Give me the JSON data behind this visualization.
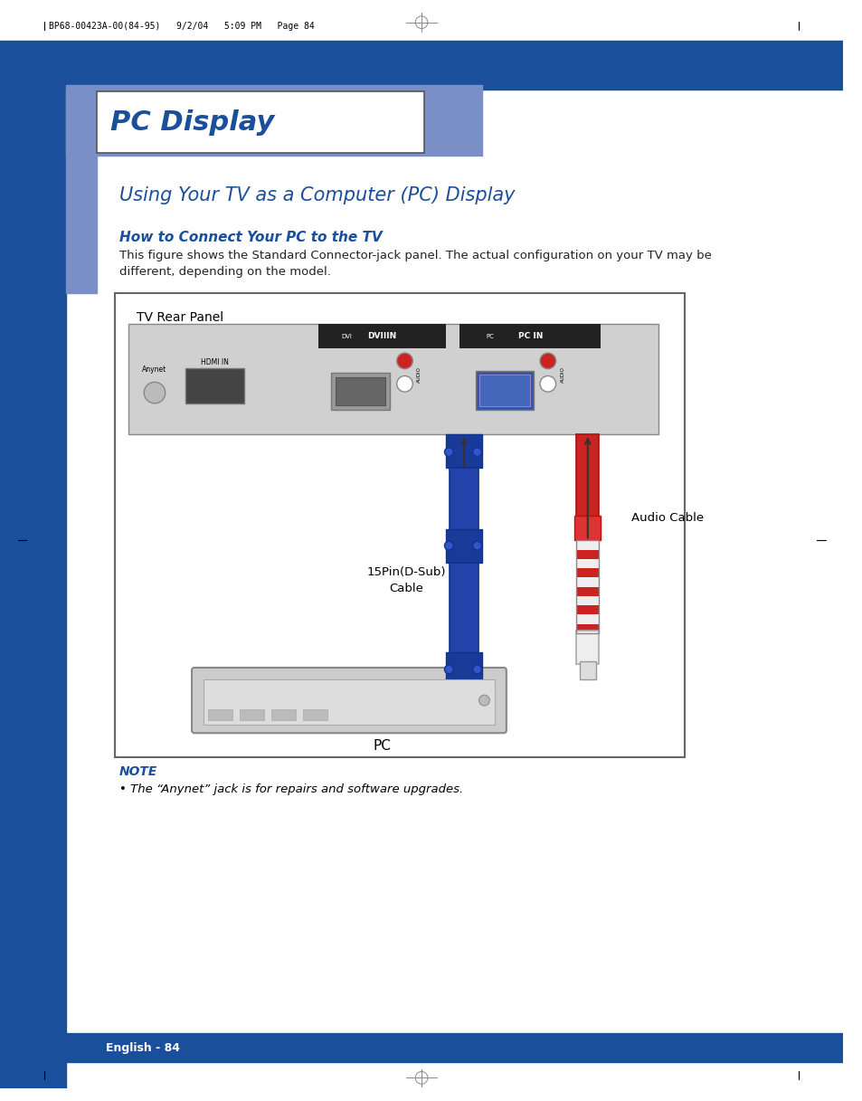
{
  "page_bg": "#ffffff",
  "dark_blue": "#1a4f9c",
  "light_blue_sidebar": "#7b8fc7",
  "title_text": "PC Display",
  "title_text_color": "#1a4f9c",
  "subtitle": "Using Your TV as a Computer (PC) Display",
  "subtitle_color": "#1a4f9c",
  "section_heading": "How to Connect Your PC to the TV",
  "section_heading_color": "#1a4f9c",
  "body_text1": "This figure shows the Standard Connector-jack panel. The actual configuration on your TV may be",
  "body_text2": "different, depending on the model.",
  "tv_panel_label": "TV Rear Panel",
  "cable_label1": "15Pin(D-Sub)\nCable",
  "cable_label2": "Audio Cable",
  "pc_label": "PC",
  "note_heading": "NOTE",
  "note_text": "• The “Anynet” jack is for repairs and software upgrades.",
  "footer_text": "English - 84",
  "footer_bg": "#1a4f9c",
  "header_line_text": "BP68-00423A-00(84-95)   9/2/04   5:09 PM   Page 84",
  "dvi_label": "DVIIIN",
  "dvi_sub": "DVI",
  "pc_in_label": "PC IN",
  "pc_sub": "PC"
}
